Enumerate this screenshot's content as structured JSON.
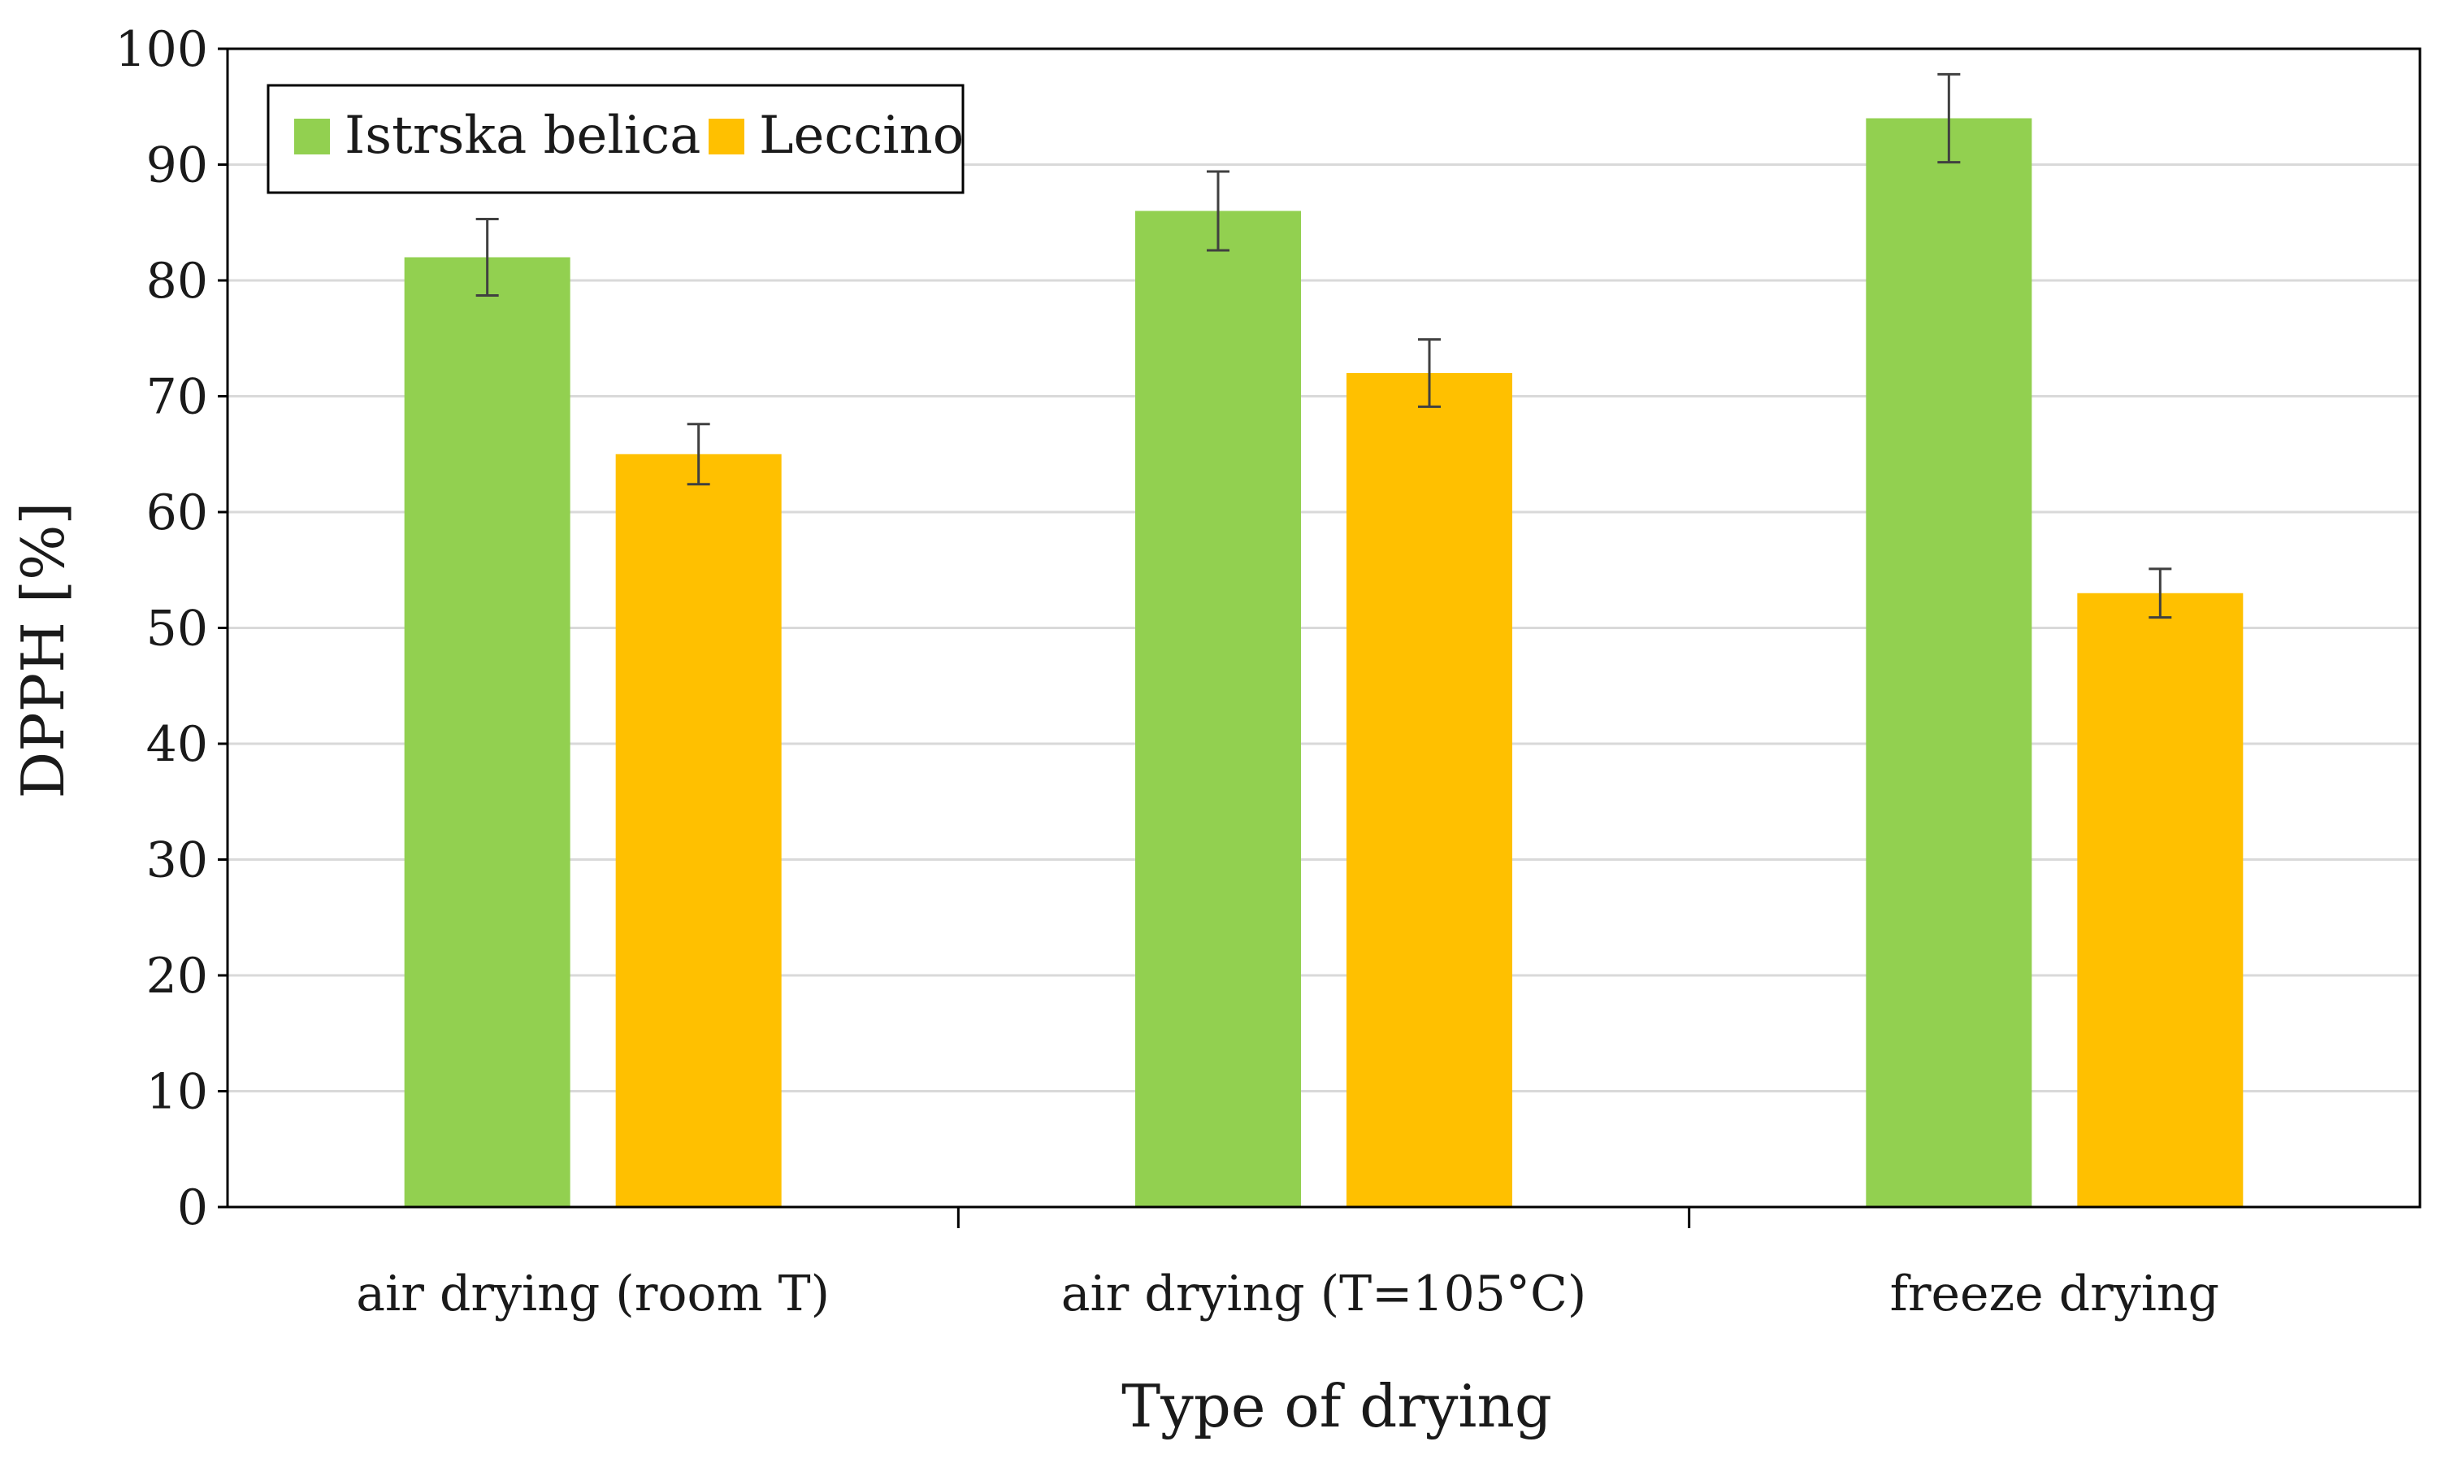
{
  "chart_data": {
    "type": "bar",
    "title": "",
    "xlabel": "Type of drying",
    "ylabel": "DPPH [%]",
    "ylim": [
      0,
      100
    ],
    "yticks": [
      0,
      10,
      20,
      30,
      40,
      50,
      60,
      70,
      80,
      90,
      100
    ],
    "grid": true,
    "legend_position": "top-left",
    "categories": [
      "air drying (room T)",
      "air drying (T=105°C)",
      "freeze drying"
    ],
    "series": [
      {
        "name": "Istrska belica",
        "color": "#92d050",
        "values": [
          82,
          86,
          94
        ],
        "errors": [
          3.3,
          3.4,
          3.8
        ]
      },
      {
        "name": "Leccino",
        "color": "#ffc000",
        "values": [
          65,
          72,
          53
        ],
        "errors": [
          2.6,
          2.9,
          2.1
        ]
      }
    ]
  }
}
